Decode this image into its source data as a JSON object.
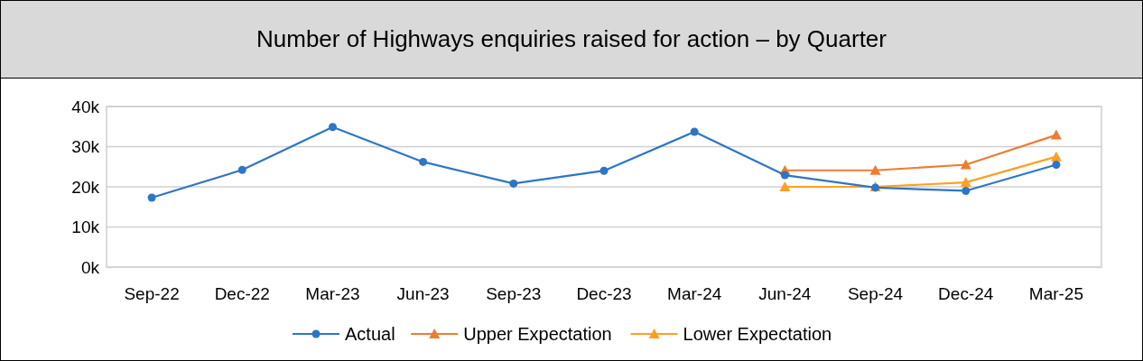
{
  "chart_data": {
    "type": "line",
    "title": "Number of Highways enquiries raised for action – by Quarter",
    "categories": [
      "Sep-22",
      "Dec-22",
      "Mar-23",
      "Jun-23",
      "Sep-23",
      "Dec-23",
      "Mar-24",
      "Jun-24",
      "Sep-24",
      "Dec-24",
      "Mar-25"
    ],
    "series": [
      {
        "name": "Actual",
        "color": "#2e75c6",
        "marker": "circle",
        "values": [
          17.3,
          24.2,
          34.9,
          26.2,
          20.8,
          24.0,
          33.7,
          22.9,
          19.8,
          19.0,
          25.5
        ]
      },
      {
        "name": "Upper Expectation",
        "color": "#ed7d31",
        "marker": "triangle",
        "values": [
          null,
          null,
          null,
          null,
          null,
          null,
          null,
          24.1,
          24.1,
          25.5,
          32.9
        ]
      },
      {
        "name": "Lower Expectation",
        "color": "#ffa020",
        "marker": "triangle",
        "values": [
          null,
          null,
          null,
          null,
          null,
          null,
          null,
          20.0,
          20.0,
          21.1,
          27.5
        ]
      }
    ],
    "ylim": [
      0,
      40
    ],
    "yticks": [
      {
        "value": 0,
        "label": "0k"
      },
      {
        "value": 10,
        "label": "10k"
      },
      {
        "value": 20,
        "label": "20k"
      },
      {
        "value": 30,
        "label": "30k"
      },
      {
        "value": 40,
        "label": "40k"
      }
    ],
    "grid": "y",
    "legend": "bottom"
  }
}
